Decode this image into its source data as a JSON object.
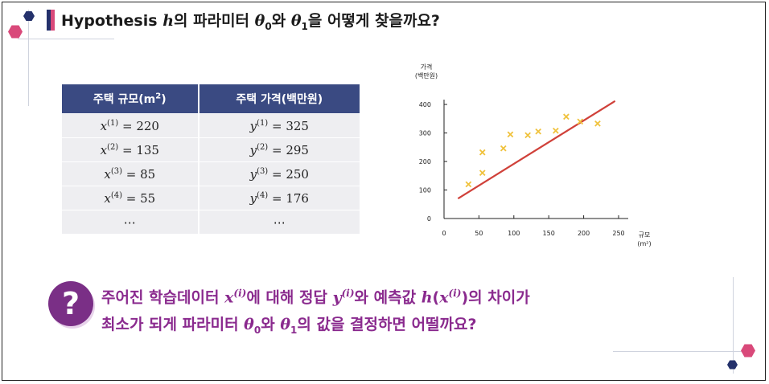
{
  "title": {
    "prefix": "Hypothesis ",
    "h": "h",
    "part1": "의 파라미터 ",
    "theta": "θ",
    "sub0": "0",
    "part2": "와 ",
    "sub1": "1",
    "part3": "을 어떻게 찾을까요?"
  },
  "table": {
    "headers": [
      "주택 규모(m",
      "2",
      ")",
      "주택 가격(백만원)"
    ],
    "rows": [
      {
        "xvar": "x",
        "xidx": "(1)",
        "xval": " = 220",
        "yvar": "y",
        "yidx": "(1)",
        "yval": " = 325"
      },
      {
        "xvar": "x",
        "xidx": "(2)",
        "xval": " = 135",
        "yvar": "y",
        "yidx": "(2)",
        "yval": " = 295"
      },
      {
        "xvar": "x",
        "xidx": "(3)",
        "xval": " = 85",
        "yvar": "y",
        "yidx": "(3)",
        "yval": " = 250"
      },
      {
        "xvar": "x",
        "xidx": "(4)",
        "xval": " = 55",
        "yvar": "y",
        "yidx": "(4)",
        "yval": " = 176"
      }
    ],
    "ellipsis": "⋯"
  },
  "chart_data": {
    "type": "scatter",
    "ylabel_line1": "가격",
    "ylabel_line2": "(백만원)",
    "xlabel_line1": "규모",
    "xlabel_line2": "(m²)",
    "xlim": [
      0,
      250
    ],
    "ylim": [
      0,
      400
    ],
    "xticks": [
      0,
      50,
      100,
      150,
      200,
      250
    ],
    "yticks": [
      0,
      100,
      200,
      300,
      400
    ],
    "points": [
      {
        "x": 35,
        "y": 120
      },
      {
        "x": 55,
        "y": 160
      },
      {
        "x": 55,
        "y": 232
      },
      {
        "x": 85,
        "y": 246
      },
      {
        "x": 95,
        "y": 295
      },
      {
        "x": 120,
        "y": 292
      },
      {
        "x": 135,
        "y": 305
      },
      {
        "x": 160,
        "y": 308
      },
      {
        "x": 175,
        "y": 357
      },
      {
        "x": 195,
        "y": 340
      },
      {
        "x": 220,
        "y": 333
      }
    ],
    "fit_line": [
      {
        "x": 20,
        "y": 70
      },
      {
        "x": 245,
        "y": 412
      }
    ],
    "point_color": "#f0c23c",
    "line_color": "#d0413a"
  },
  "question": {
    "icon": "?",
    "line1_a": "주어진 학습데이터 ",
    "x": "x",
    "sup_i": "(i)",
    "line1_b": "에 대해 정답 ",
    "y": "y",
    "line1_c": "와 예측값 ",
    "h": "h",
    "lp": "(",
    "rp": ")",
    "line1_d": "의 차이가",
    "line2_a": "최소가 되게 파라미터 ",
    "theta": "θ",
    "sub0": "0",
    "line2_b": "와 ",
    "sub1": "1",
    "line2_c": "의 값을 결정하면 어떨까요?"
  },
  "colors": {
    "accent_purple": "#7a2f86",
    "table_header": "#3a4a82",
    "deco_pink": "#d9497a",
    "deco_navy": "#24316b"
  }
}
